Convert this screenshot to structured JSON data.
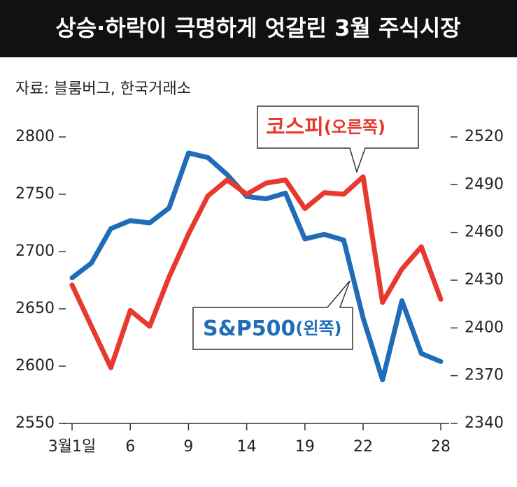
{
  "chart_data": {
    "type": "line",
    "title": "상승·하락이 극명하게 엇갈린 3월 주식시장",
    "source": "자료: 블룸버그, 한국거래소",
    "categories": [
      "3월1일",
      null,
      null,
      "6",
      null,
      null,
      "9",
      null,
      null,
      "14",
      null,
      null,
      "19",
      null,
      null,
      "22",
      null,
      null,
      null,
      "28"
    ],
    "series": [
      {
        "name": "S&P500",
        "side_label": "(왼쪽)",
        "color": "#1f6db8",
        "axis": "y",
        "values": [
          2677,
          2690,
          2720,
          2727,
          2725,
          2738,
          2786,
          2782,
          2767,
          2748,
          2746,
          2751,
          2711,
          2715,
          2710,
          2642,
          2588,
          2657,
          2611,
          2604
        ]
      },
      {
        "name": "코스피",
        "side_label": "(오른쪽)",
        "color": "#e8392e",
        "axis": "y2",
        "values": [
          2427,
          2401,
          2375,
          2411,
          2401,
          2432,
          2459,
          2483,
          2493,
          2484,
          2491,
          2493,
          2475,
          2485,
          2484,
          2495,
          2416,
          2437,
          2451,
          2418
        ]
      }
    ],
    "ylim": [
      2550,
      2800
    ],
    "yticks": [
      2550,
      2600,
      2650,
      2700,
      2750,
      2800
    ],
    "y2lim": [
      2340,
      2520
    ],
    "y2ticks": [
      2340,
      2370,
      2400,
      2430,
      2460,
      2490,
      2520
    ]
  }
}
